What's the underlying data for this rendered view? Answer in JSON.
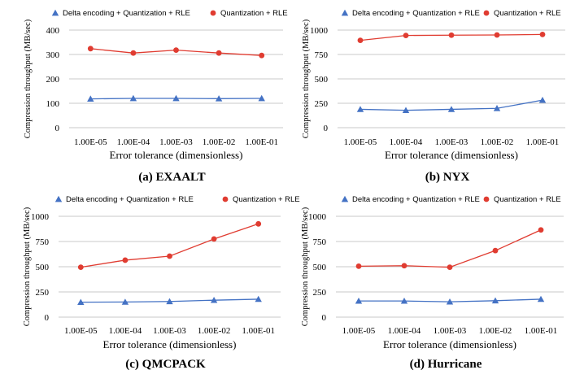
{
  "chart_data": [
    {
      "type": "line",
      "caption": "(a) EXAALT",
      "categories": [
        "1.00E-05",
        "1.00E-04",
        "1.00E-03",
        "1.00E-02",
        "1.00E-01"
      ],
      "series": [
        {
          "name": "Delta encoding + Quantization + RLE",
          "color": "#4472c4",
          "marker": "triangle",
          "values": [
            118,
            120,
            120,
            119,
            120
          ]
        },
        {
          "name": "Quantization + RLE",
          "color": "#e03c31",
          "marker": "circle",
          "values": [
            324,
            306,
            318,
            306,
            296
          ]
        }
      ],
      "xlabel": "Error tolerance (dimensionless)",
      "ylabel": "Compression throughput (MB/sec)",
      "ylim": [
        0,
        400
      ],
      "yticks": [
        0,
        100,
        200,
        300,
        400
      ],
      "grid": true,
      "legend_position": "top"
    },
    {
      "type": "line",
      "caption": "(b) NYX",
      "categories": [
        "1.00E-05",
        "1.00E-04",
        "1.00E-03",
        "1.00E-02",
        "1.00E-01"
      ],
      "series": [
        {
          "name": "Delta encoding + Quantization + RLE",
          "color": "#4472c4",
          "marker": "triangle",
          "values": [
            188,
            178,
            188,
            198,
            282
          ]
        },
        {
          "name": "Quantization + RLE",
          "color": "#e03c31",
          "marker": "circle",
          "values": [
            895,
            945,
            948,
            950,
            955
          ]
        }
      ],
      "xlabel": "Error tolerance (dimensionless)",
      "ylabel": "Compression throughput (MB/sec)",
      "ylim": [
        0,
        1000
      ],
      "yticks": [
        0,
        250,
        500,
        750,
        1000
      ],
      "grid": true,
      "legend_position": "top"
    },
    {
      "type": "line",
      "caption": "(c) QMCPACK",
      "categories": [
        "1.00E-05",
        "1.00E-04",
        "1.00E-03",
        "1.00E-02",
        "1.00E-01"
      ],
      "series": [
        {
          "name": "Delta encoding + Quantization + RLE",
          "color": "#4472c4",
          "marker": "triangle",
          "values": [
            148,
            150,
            155,
            168,
            178
          ]
        },
        {
          "name": "Quantization + RLE",
          "color": "#e03c31",
          "marker": "circle",
          "values": [
            495,
            565,
            605,
            775,
            925
          ]
        }
      ],
      "xlabel": "Error tolerance (dimensionless)",
      "ylabel": "Compression throughput (MB/sec)",
      "ylim": [
        0,
        1000
      ],
      "yticks": [
        0,
        250,
        500,
        750,
        1000
      ],
      "grid": true,
      "legend_position": "top"
    },
    {
      "type": "line",
      "caption": "(d) Hurricane",
      "categories": [
        "1.00E-05",
        "1.00E-04",
        "1.00E-03",
        "1.00E-02",
        "1.00E-01"
      ],
      "series": [
        {
          "name": "Delta encoding + Quantization + RLE",
          "color": "#4472c4",
          "marker": "triangle",
          "values": [
            160,
            160,
            152,
            163,
            178
          ]
        },
        {
          "name": "Quantization + RLE",
          "color": "#e03c31",
          "marker": "circle",
          "values": [
            505,
            510,
            495,
            660,
            865
          ]
        }
      ],
      "xlabel": "Error tolerance (dimensionless)",
      "ylabel": "Compression throughput (MB/sec)",
      "ylim": [
        0,
        1000
      ],
      "yticks": [
        0,
        250,
        500,
        750,
        1000
      ],
      "grid": true,
      "legend_position": "top"
    }
  ]
}
